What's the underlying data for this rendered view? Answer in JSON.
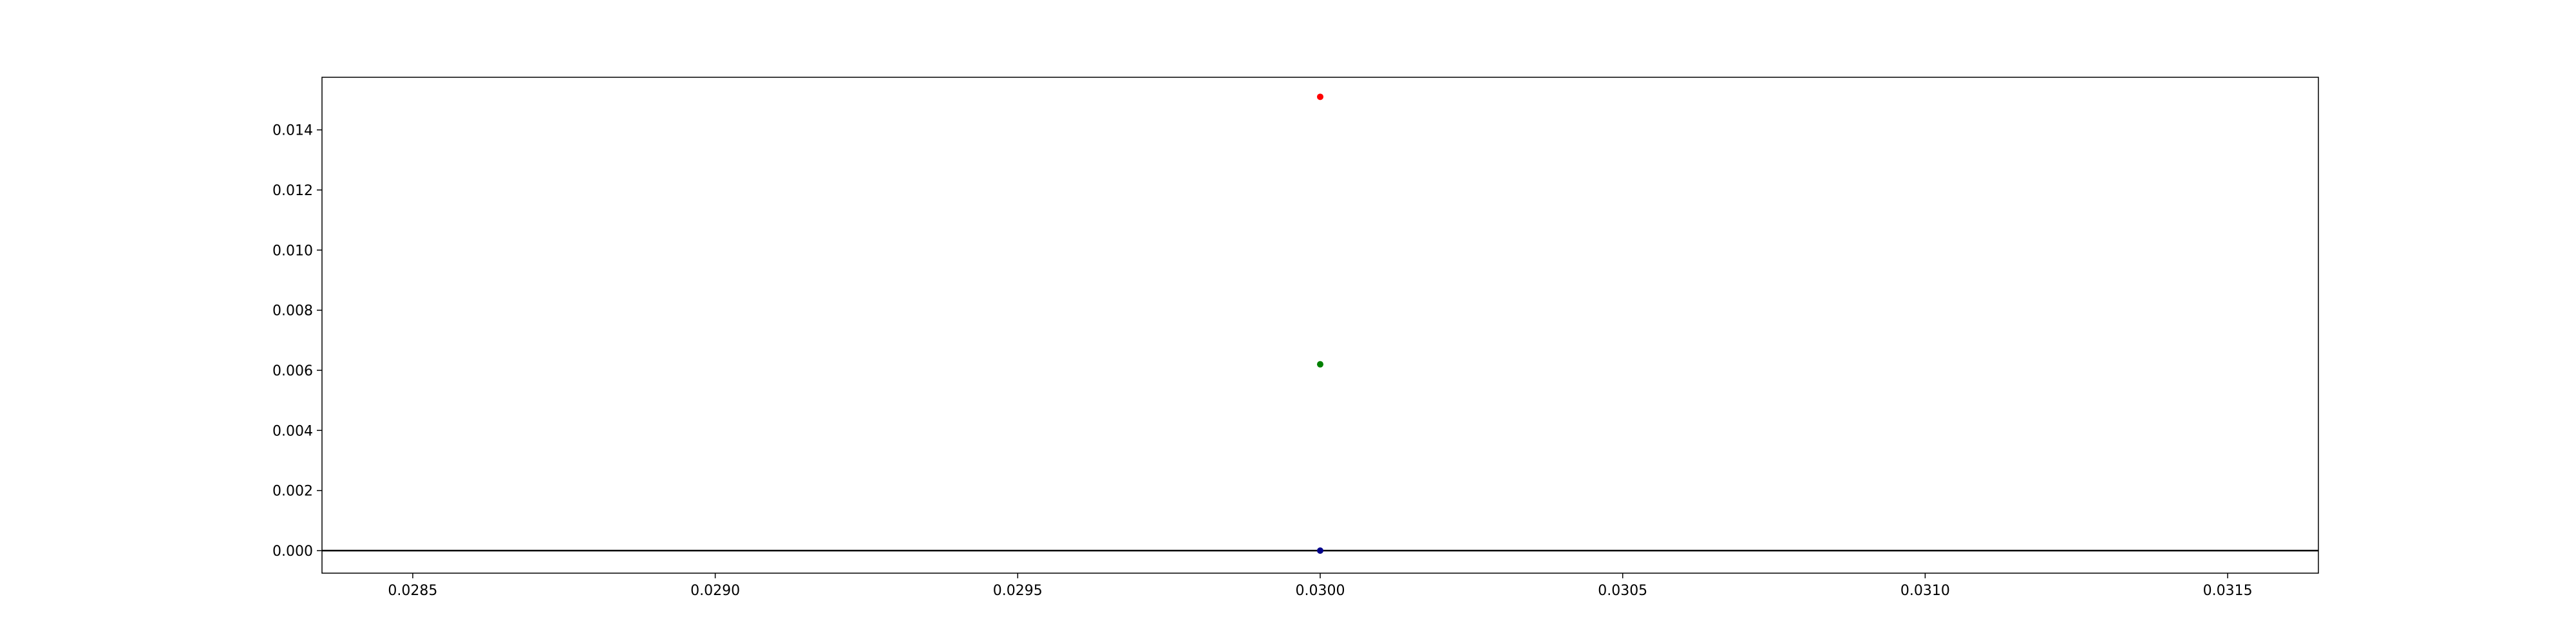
{
  "chart_data": {
    "type": "scatter",
    "title": "",
    "xlabel": "",
    "ylabel": "",
    "xlim": [
      0.02835,
      0.03165
    ],
    "ylim": [
      -0.00075,
      0.01575
    ],
    "xticks": [
      {
        "value": 0.0285,
        "label": "0.0285"
      },
      {
        "value": 0.029,
        "label": "0.0290"
      },
      {
        "value": 0.0295,
        "label": "0.0295"
      },
      {
        "value": 0.03,
        "label": "0.0300"
      },
      {
        "value": 0.0305,
        "label": "0.0305"
      },
      {
        "value": 0.031,
        "label": "0.0310"
      },
      {
        "value": 0.0315,
        "label": "0.0315"
      }
    ],
    "yticks": [
      {
        "value": 0.0,
        "label": "0.000"
      },
      {
        "value": 0.002,
        "label": "0.002"
      },
      {
        "value": 0.004,
        "label": "0.004"
      },
      {
        "value": 0.006,
        "label": "0.006"
      },
      {
        "value": 0.008,
        "label": "0.008"
      },
      {
        "value": 0.01,
        "label": "0.010"
      },
      {
        "value": 0.012,
        "label": "0.012"
      },
      {
        "value": 0.014,
        "label": "0.014"
      }
    ],
    "reference_line": {
      "y": 0.0,
      "color": "#000000"
    },
    "series": [
      {
        "color": "#ff0000",
        "points": [
          {
            "x": 0.03,
            "y": 0.0151
          }
        ]
      },
      {
        "color": "#008000",
        "points": [
          {
            "x": 0.03,
            "y": 0.0062
          }
        ]
      },
      {
        "color": "#00008b",
        "points": [
          {
            "x": 0.03,
            "y": 0.0
          }
        ]
      }
    ],
    "grid": false,
    "legend": "none"
  }
}
